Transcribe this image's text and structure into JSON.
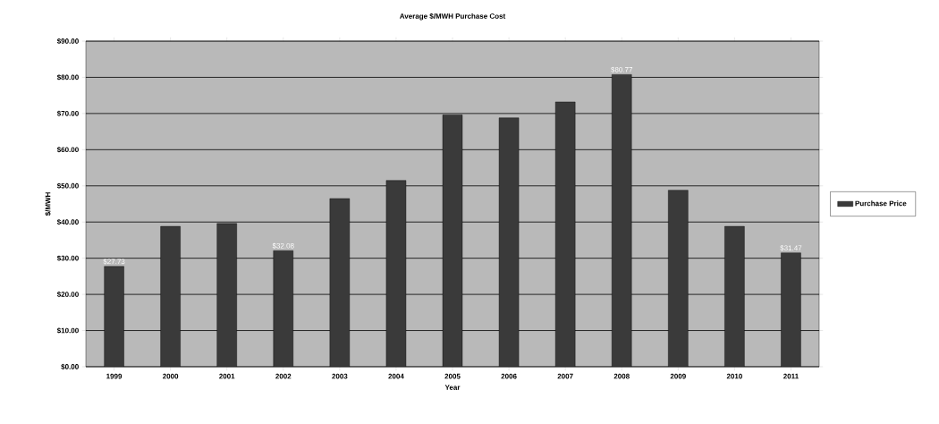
{
  "chart_data": {
    "type": "bar",
    "title": "Average $/MWH Purchase Cost",
    "xlabel": "Year",
    "ylabel": "$/MWH",
    "categories": [
      "1999",
      "2000",
      "2001",
      "2002",
      "2003",
      "2004",
      "2005",
      "2006",
      "2007",
      "2008",
      "2009",
      "2010",
      "2011"
    ],
    "series": [
      {
        "name": "Purchase Price",
        "color": "#3a3a3a",
        "values": [
          27.73,
          38.8,
          39.6,
          32.08,
          46.5,
          51.5,
          69.6,
          68.8,
          73.2,
          80.77,
          48.8,
          38.8,
          31.47
        ],
        "value_labels": [
          "$27.73",
          null,
          null,
          "$32.08",
          null,
          null,
          null,
          null,
          null,
          "$80.77",
          null,
          null,
          "$31.47"
        ]
      }
    ],
    "ylim": [
      0,
      90
    ],
    "yticks": [
      {
        "value": 0,
        "label": "$0.00"
      },
      {
        "value": 10,
        "label": "$10.00"
      },
      {
        "value": 20,
        "label": "$20.00"
      },
      {
        "value": 30,
        "label": "$30.00"
      },
      {
        "value": 40,
        "label": "$40.00"
      },
      {
        "value": 50,
        "label": "$50.00"
      },
      {
        "value": 60,
        "label": "$60.00"
      },
      {
        "value": 70,
        "label": "$70.00"
      },
      {
        "value": 80,
        "label": "$80.00"
      },
      {
        "value": 90,
        "label": "$90.00"
      }
    ],
    "grid": "y",
    "legend": "right"
  }
}
